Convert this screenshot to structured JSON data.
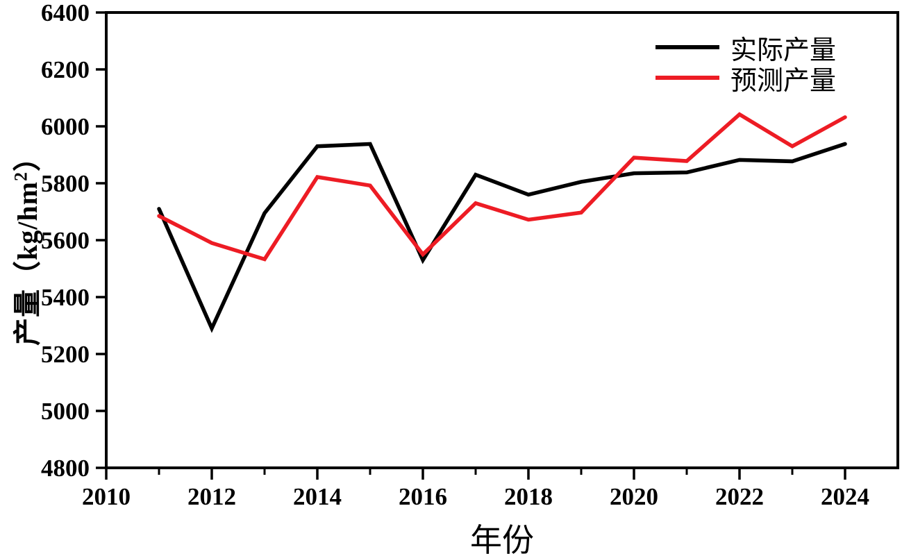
{
  "chart_data": {
    "type": "line",
    "title": "",
    "xlabel": "年份",
    "ylabel": "产量（kg/hm²）",
    "ylabel_parts": {
      "main": "产量（kg/hm",
      "sup": "2",
      "close": "）"
    },
    "x": [
      2011,
      2012,
      2013,
      2014,
      2015,
      2016,
      2017,
      2018,
      2019,
      2020,
      2021,
      2022,
      2023,
      2024
    ],
    "series": [
      {
        "name": "实际产量",
        "color": "#000000",
        "values": [
          5710,
          5290,
          5695,
          5930,
          5938,
          5530,
          5830,
          5760,
          5805,
          5835,
          5838,
          5882,
          5877,
          5938
        ]
      },
      {
        "name": "预测产量",
        "color": "#ed1c24",
        "values": [
          5685,
          5590,
          5533,
          5822,
          5792,
          5550,
          5730,
          5672,
          5697,
          5890,
          5878,
          6042,
          5930,
          6032
        ]
      }
    ],
    "xlim": [
      2010,
      2025
    ],
    "ylim": [
      4800,
      6400
    ],
    "x_major_ticks": [
      2010,
      2012,
      2014,
      2016,
      2018,
      2020,
      2022,
      2024
    ],
    "x_minor_ticks": [
      2011,
      2013,
      2015,
      2017,
      2019,
      2021,
      2023
    ],
    "y_ticks": [
      4800,
      5000,
      5200,
      5400,
      5600,
      5800,
      6000,
      6200,
      6400
    ],
    "grid": false,
    "legend_position": "top-right",
    "frame_color": "#000000"
  }
}
